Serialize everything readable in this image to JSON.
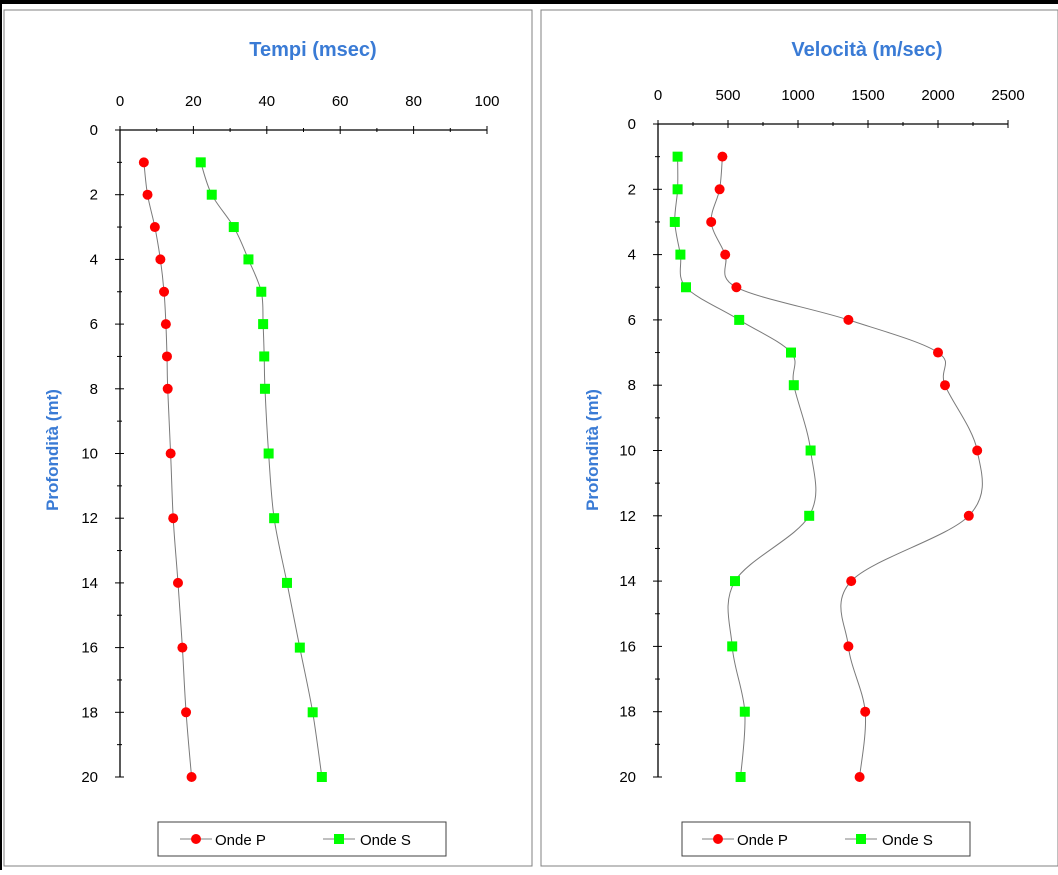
{
  "charts": [
    {
      "chart_data": {
        "type": "scatter",
        "title": "Tempi (msec)",
        "xlabel": "",
        "ylabel": "Profondità (mt)",
        "x_axis_position": "top",
        "y_axis_inverted": true,
        "xlim": [
          0,
          100
        ],
        "ylim": [
          0,
          20
        ],
        "x_ticks": [
          "0",
          "20",
          "40",
          "60",
          "80",
          "100"
        ],
        "y_ticks": [
          "0",
          "2",
          "4",
          "6",
          "8",
          "10",
          "12",
          "14",
          "16",
          "18",
          "20"
        ],
        "grid": false,
        "legend_position": "bottom",
        "series": [
          {
            "name": "Onde P",
            "color": "#ff0000",
            "marker": "circle",
            "points": [
              [
                6.5,
                1
              ],
              [
                7.5,
                2
              ],
              [
                9.5,
                3
              ],
              [
                11,
                4
              ],
              [
                12,
                5
              ],
              [
                12.5,
                6
              ],
              [
                12.8,
                7
              ],
              [
                13,
                8
              ],
              [
                13.8,
                10
              ],
              [
                14.5,
                12
              ],
              [
                15.8,
                14
              ],
              [
                17,
                16
              ],
              [
                18,
                18
              ],
              [
                19.5,
                20
              ]
            ]
          },
          {
            "name": "Onde S",
            "color": "#00ff00",
            "marker": "square",
            "points": [
              [
                22,
                1
              ],
              [
                25,
                2
              ],
              [
                31,
                3
              ],
              [
                35,
                4
              ],
              [
                38.5,
                5
              ],
              [
                39,
                6
              ],
              [
                39.3,
                7
              ],
              [
                39.5,
                8
              ],
              [
                40.5,
                10
              ],
              [
                42,
                12
              ],
              [
                45.5,
                14
              ],
              [
                49,
                16
              ],
              [
                52.5,
                18
              ],
              [
                55,
                20
              ]
            ]
          }
        ]
      }
    },
    {
      "chart_data": {
        "type": "scatter",
        "title": "Velocità (m/sec)",
        "xlabel": "",
        "ylabel": "Profondità (mt)",
        "x_axis_position": "top",
        "y_axis_inverted": true,
        "xlim": [
          0,
          2500
        ],
        "ylim": [
          0,
          20
        ],
        "x_ticks": [
          "0",
          "500",
          "1000",
          "1500",
          "2000",
          "2500"
        ],
        "y_ticks": [
          "0",
          "2",
          "4",
          "6",
          "8",
          "10",
          "12",
          "14",
          "16",
          "18",
          "20"
        ],
        "grid": false,
        "legend_position": "bottom",
        "series": [
          {
            "name": "Onde P",
            "color": "#ff0000",
            "marker": "circle",
            "points": [
              [
                460,
                1
              ],
              [
                440,
                2
              ],
              [
                380,
                3
              ],
              [
                480,
                4
              ],
              [
                560,
                5
              ],
              [
                1360,
                6
              ],
              [
                2000,
                7
              ],
              [
                2050,
                8
              ],
              [
                2280,
                10
              ],
              [
                2220,
                12
              ],
              [
                1380,
                14
              ],
              [
                1360,
                16
              ],
              [
                1480,
                18
              ],
              [
                1440,
                20
              ]
            ]
          },
          {
            "name": "Onde S",
            "color": "#00ff00",
            "marker": "square",
            "points": [
              [
                140,
                1
              ],
              [
                140,
                2
              ],
              [
                120,
                3
              ],
              [
                160,
                4
              ],
              [
                200,
                5
              ],
              [
                580,
                6
              ],
              [
                950,
                7
              ],
              [
                970,
                8
              ],
              [
                1090,
                10
              ],
              [
                1080,
                12
              ],
              [
                550,
                14
              ],
              [
                530,
                16
              ],
              [
                620,
                18
              ],
              [
                590,
                20
              ]
            ]
          }
        ]
      }
    }
  ]
}
